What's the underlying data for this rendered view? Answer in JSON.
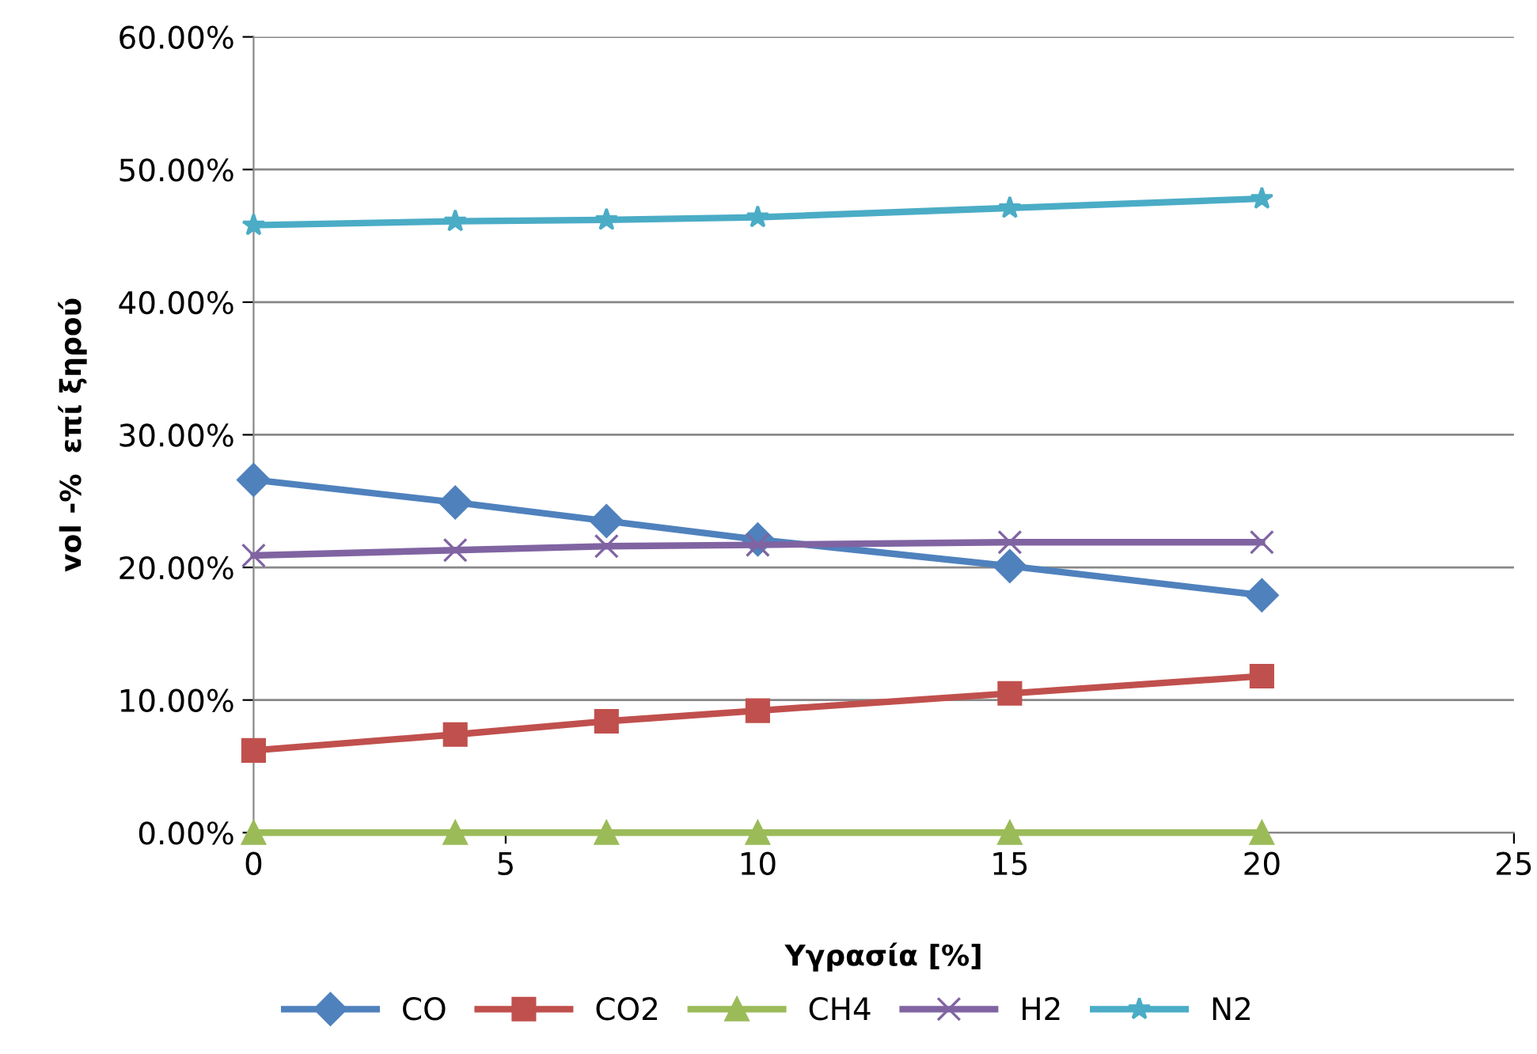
{
  "chart_data": {
    "type": "line",
    "xlabel": "Υγρασία [%]",
    "ylabel": "vol -%  επί ξηρού",
    "x": [
      0,
      4,
      7,
      10,
      15,
      20
    ],
    "series": [
      {
        "name": "CO",
        "color": "#4f81bd",
        "marker": "diamond",
        "values": [
          26.6,
          24.9,
          23.5,
          22.1,
          20.1,
          17.9
        ]
      },
      {
        "name": "CO2",
        "color": "#c0504d",
        "marker": "square",
        "values": [
          6.2,
          7.4,
          8.4,
          9.2,
          10.5,
          11.8
        ]
      },
      {
        "name": "CH4",
        "color": "#9bbb59",
        "marker": "triangle",
        "values": [
          0,
          0,
          0,
          0,
          0,
          0
        ]
      },
      {
        "name": "H2",
        "color": "#8064a2",
        "marker": "cross",
        "values": [
          20.9,
          21.3,
          21.6,
          21.7,
          21.9,
          21.9
        ]
      },
      {
        "name": "N2",
        "color": "#4bacc6",
        "marker": "star",
        "values": [
          45.8,
          46.1,
          46.2,
          46.4,
          47.1,
          47.8
        ]
      }
    ],
    "xlim": [
      0,
      25
    ],
    "xticks": [
      0,
      5,
      10,
      15,
      20,
      25
    ],
    "ylim": [
      0,
      60
    ],
    "yticks": [
      {
        "value": 0,
        "label": "0.00%"
      },
      {
        "value": 10,
        "label": "10.00%"
      },
      {
        "value": 20,
        "label": "20.00%"
      },
      {
        "value": 30,
        "label": "30.00%"
      },
      {
        "value": 40,
        "label": "40.00%"
      },
      {
        "value": 50,
        "label": "50.00%"
      },
      {
        "value": 60,
        "label": "60.00%"
      }
    ],
    "grid": "y",
    "legend": "bottom"
  }
}
